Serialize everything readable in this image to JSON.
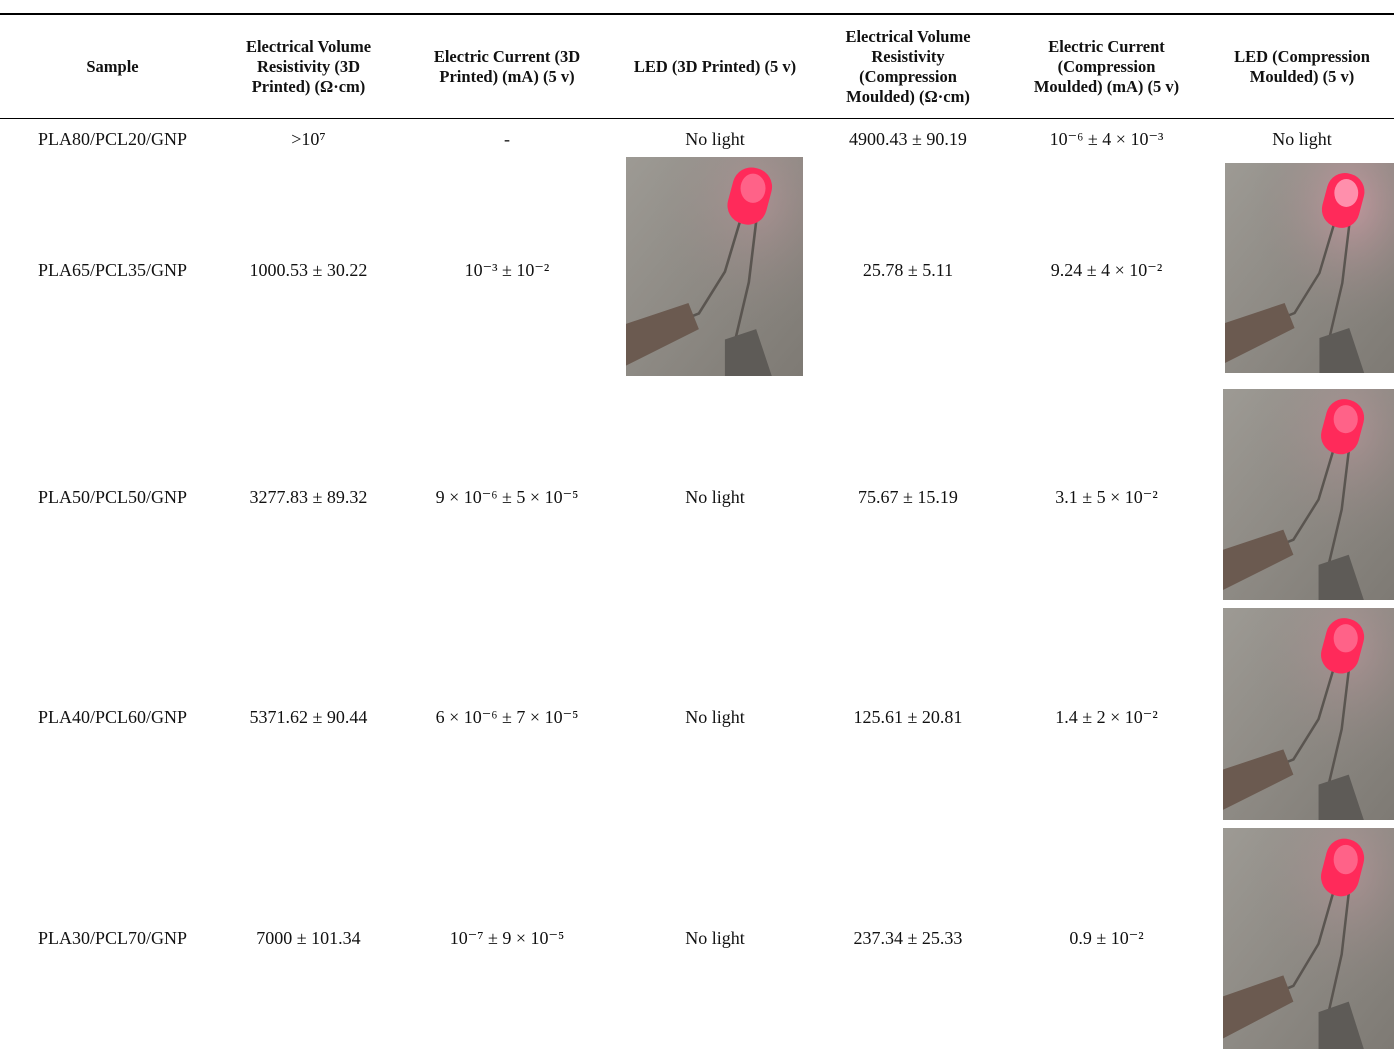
{
  "table": {
    "header": [
      "Sample",
      "Electrical Volume Resistivity (3D Printed) (Ω·cm)",
      "Electric Current (3D Printed) (mA) (5 v)",
      "LED (3D Printed) (5 v)",
      "Electrical Volume Resistivity (Compression Moulded) (Ω·cm)",
      "Electric Current (Compression Moulded) (mA) (5 v)",
      "LED (Compression Moulded) (5 v)"
    ],
    "rows": [
      [
        "PLA80/PCL20/GNP",
        ">10⁷",
        "-",
        "No light",
        "4900.43 ± 90.19",
        "10⁻⁶ ± 4 × 10⁻³",
        "No light"
      ],
      [
        "PLA65/PCL35/GNP",
        "1000.53 ± 30.22",
        "10⁻³ ± 10⁻²",
        null,
        "25.78 ± 5.11",
        "9.24 ± 4 × 10⁻²",
        null
      ],
      [
        "PLA50/PCL50/GNP",
        "3277.83 ± 89.32",
        "9 × 10⁻⁶ ± 5 × 10⁻⁵",
        "No light",
        "75.67 ± 15.19",
        "3.1 ± 5 × 10⁻²",
        null
      ],
      [
        "PLA40/PCL60/GNP",
        "5371.62 ± 90.44",
        "6 × 10⁻⁶ ± 7 × 10⁻⁵",
        "No light",
        "125.61 ± 20.81",
        "1.4 ± 2 × 10⁻²",
        null
      ],
      [
        "PLA30/PCL70/GNP",
        "7000 ± 101.34",
        "10⁻⁷ ± 9 × 10⁻⁵",
        "No light",
        "237.34 ± 25.33",
        "0.9 ± 10⁻²",
        null
      ]
    ]
  }
}
